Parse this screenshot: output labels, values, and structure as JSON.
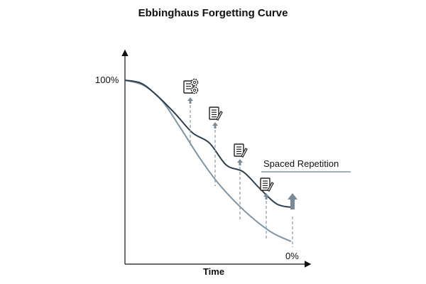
{
  "chart_data": {
    "type": "line",
    "title": "Ebbinghaus Forgetting Curve",
    "xlabel": "Time",
    "ylabel": "",
    "y_top_label": "100%",
    "y_bottom_label": "0%",
    "ylim": [
      0,
      100
    ],
    "grid": false,
    "annotation": "Spaced Repetition",
    "colors": {
      "forgetting": "#7f95a5",
      "spaced": "#2f3f4e",
      "arrow": "#7a8a97",
      "dash": "#8a98a4"
    },
    "series": [
      {
        "values": [
          100,
          97,
          88,
          72,
          55,
          40,
          28,
          18,
          10,
          5
        ]
      },
      {
        "values": [
          100,
          98,
          90,
          80,
          69,
          63,
          50,
          46,
          36,
          27,
          25
        ]
      }
    ],
    "review_markers": [
      {
        "icon": "document-gear-icon"
      },
      {
        "icon": "note-pencil-icon"
      },
      {
        "icon": "note-pencil-icon"
      },
      {
        "icon": "note-pencil-icon"
      },
      {
        "icon": "up-arrow-icon"
      }
    ]
  }
}
